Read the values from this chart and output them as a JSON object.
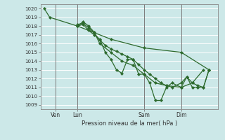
{
  "title": "Pression niveau de la mer( hPa )",
  "ylabel_ticks": [
    1009,
    1010,
    1011,
    1012,
    1013,
    1014,
    1015,
    1016,
    1017,
    1018,
    1019,
    1020
  ],
  "ylim": [
    1008.5,
    1020.5
  ],
  "bg_color": "#cce8e8",
  "grid_color": "#ffffff",
  "line_color": "#2d6a2d",
  "marker_color": "#2d6a2d",
  "xlim": [
    0,
    96
  ],
  "day_lines": [
    8,
    20,
    56,
    76
  ],
  "day_labels": [
    "Ven",
    "Lun",
    "Sam",
    "Dim"
  ],
  "series": [
    {
      "x": [
        2,
        5,
        20,
        23,
        26,
        29,
        32,
        35,
        38,
        41,
        44,
        47,
        50,
        53,
        56,
        59,
        62,
        65,
        68,
        71,
        76,
        79,
        82,
        85,
        88,
        91
      ],
      "y": [
        1020,
        1019,
        1018,
        1018.2,
        1017.5,
        1017,
        1016.5,
        1015,
        1014.2,
        1013.0,
        1012.6,
        1014.2,
        1014.2,
        1012.5,
        1012.5,
        1011.5,
        1009.5,
        1009.5,
        1011,
        1011.5,
        1011,
        1012.2,
        1011,
        1011,
        1011,
        1013
      ]
    },
    {
      "x": [
        20,
        23,
        26,
        29,
        32,
        35,
        38,
        41,
        44,
        47,
        50,
        53,
        56,
        59,
        62,
        65,
        68,
        71,
        76,
        79,
        82,
        85,
        88,
        91
      ],
      "y": [
        1018.2,
        1018.3,
        1017.8,
        1017.2,
        1016.4,
        1015.8,
        1015.4,
        1015.1,
        1014.8,
        1014.5,
        1014.2,
        1013.6,
        1013.0,
        1012.5,
        1012.0,
        1011.5,
        1011.2,
        1011.0,
        1011.5,
        1012.2,
        1011.5,
        1011.2,
        1011.0,
        1013.0
      ]
    },
    {
      "x": [
        20,
        23,
        26,
        29,
        32,
        38,
        44,
        50,
        56,
        62,
        68,
        76,
        82,
        88
      ],
      "y": [
        1018.0,
        1018.5,
        1018.0,
        1017.3,
        1016.0,
        1015.0,
        1014.0,
        1013.5,
        1012.5,
        1011.5,
        1011.2,
        1011.0,
        1011.5,
        1013.0
      ]
    },
    {
      "x": [
        20,
        38,
        56,
        76,
        91
      ],
      "y": [
        1018.0,
        1016.5,
        1015.5,
        1015.0,
        1013.0
      ]
    }
  ]
}
